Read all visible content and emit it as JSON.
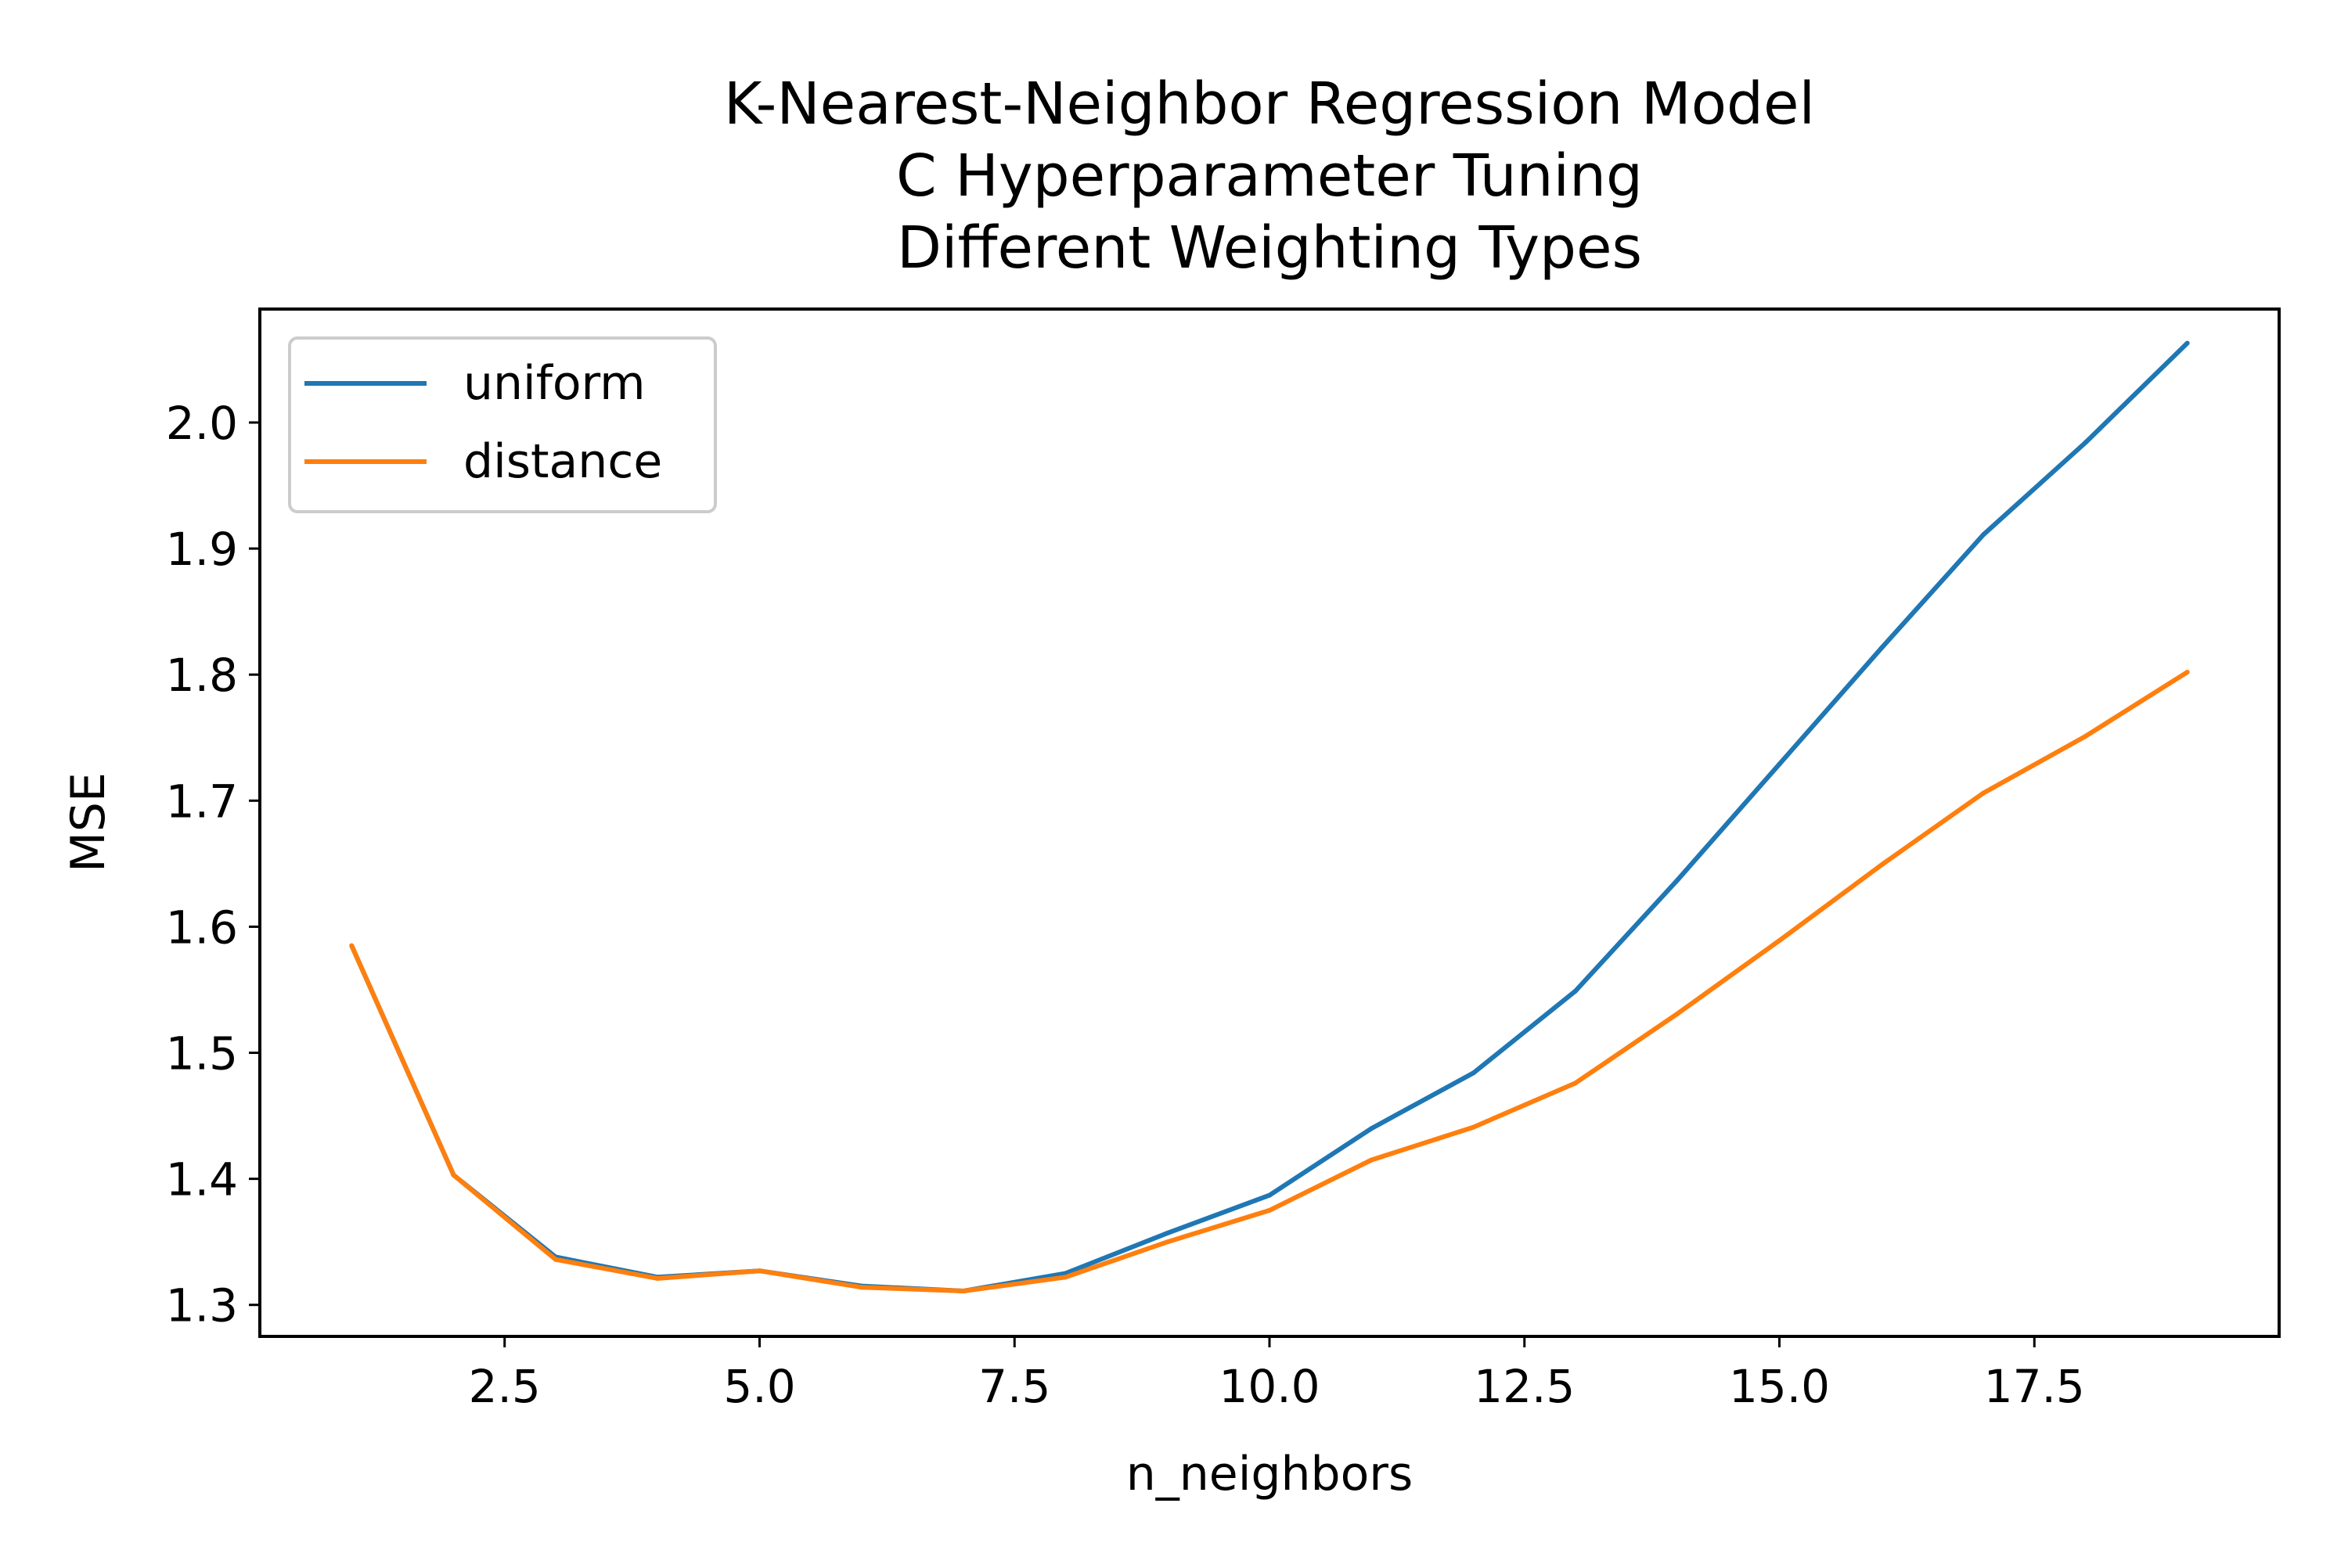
{
  "chart_data": {
    "type": "line",
    "title_lines": [
      "K-Nearest-Neighbor Regression Model",
      "C Hyperparameter Tuning",
      "Different Weighting Types"
    ],
    "xlabel": "n_neighbors",
    "ylabel": "MSE",
    "xlim": [
      0.1,
      19.9
    ],
    "ylim": [
      1.275,
      2.09
    ],
    "x_ticks": [
      2.5,
      5.0,
      7.5,
      10.0,
      12.5,
      15.0,
      17.5
    ],
    "x_tick_labels": [
      "2.5",
      "5.0",
      "7.5",
      "10.0",
      "12.5",
      "15.0",
      "17.5"
    ],
    "y_ticks": [
      1.3,
      1.4,
      1.5,
      1.6,
      1.7,
      1.8,
      1.9,
      2.0
    ],
    "y_tick_labels": [
      "1.3",
      "1.4",
      "1.5",
      "1.6",
      "1.7",
      "1.8",
      "1.9",
      "2.0"
    ],
    "grid": false,
    "legend_position": "upper-left",
    "x": [
      1,
      2,
      3,
      4,
      5,
      6,
      7,
      8,
      9,
      10,
      11,
      12,
      13,
      14,
      15,
      16,
      17,
      18,
      19
    ],
    "series": [
      {
        "name": "uniform",
        "color": "#1f77b4",
        "values": [
          1.585,
          1.403,
          1.338,
          1.322,
          1.327,
          1.315,
          1.311,
          1.325,
          1.357,
          1.387,
          1.44,
          1.484,
          1.549,
          1.637,
          1.729,
          1.821,
          1.911,
          1.984,
          2.063
        ]
      },
      {
        "name": "distance",
        "color": "#ff7f0e",
        "values": [
          1.585,
          1.403,
          1.336,
          1.321,
          1.327,
          1.314,
          1.311,
          1.322,
          1.35,
          1.375,
          1.415,
          1.441,
          1.476,
          1.531,
          1.589,
          1.649,
          1.706,
          1.751,
          1.802
        ]
      }
    ]
  }
}
